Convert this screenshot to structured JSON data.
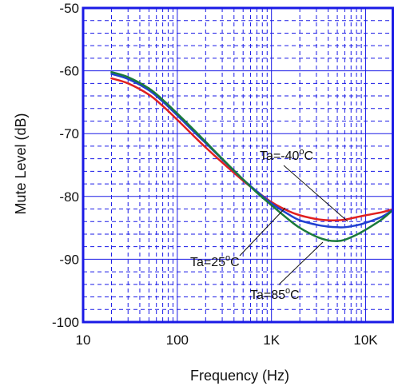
{
  "chart_data": {
    "type": "line",
    "title": "",
    "xlabel": "Frequency (Hz)",
    "ylabel": "Mute Level (dB)",
    "xscale": "log",
    "xlim": [
      10,
      20000
    ],
    "ylim": [
      -100,
      -50
    ],
    "x_ticks": [
      {
        "value": 10,
        "label": "10"
      },
      {
        "value": 100,
        "label": "100"
      },
      {
        "value": 1000,
        "label": "1K"
      },
      {
        "value": 10000,
        "label": "10K"
      }
    ],
    "y_ticks": [
      {
        "value": -50,
        "label": "-50"
      },
      {
        "value": -60,
        "label": "-60"
      },
      {
        "value": -70,
        "label": "-70"
      },
      {
        "value": -80,
        "label": "-80"
      },
      {
        "value": -90,
        "label": "-90"
      },
      {
        "value": -100,
        "label": "-100"
      }
    ],
    "grid": true,
    "legend": "none",
    "series": [
      {
        "name": "Ta=25°C",
        "color": "#e02020",
        "x": [
          20,
          30,
          50,
          70,
          100,
          150,
          200,
          300,
          500,
          700,
          1000,
          1500,
          2000,
          3000,
          4000,
          5000,
          6000,
          8000,
          10000,
          15000,
          20000
        ],
        "y": [
          -61.2,
          -62.0,
          -63.8,
          -65.6,
          -67.8,
          -70.4,
          -72.2,
          -74.6,
          -77.5,
          -79.2,
          -80.9,
          -82.3,
          -83.0,
          -83.6,
          -83.8,
          -83.8,
          -83.7,
          -83.3,
          -83.0,
          -82.5,
          -82.0
        ]
      },
      {
        "name": "Ta=-40°C",
        "color": "#2040d0",
        "x": [
          20,
          30,
          50,
          70,
          100,
          150,
          200,
          300,
          500,
          700,
          1000,
          1500,
          2000,
          3000,
          4000,
          5000,
          6000,
          8000,
          10000,
          15000,
          20000
        ],
        "y": [
          -60.5,
          -61.3,
          -63.1,
          -64.9,
          -67.1,
          -69.7,
          -71.5,
          -74.1,
          -77.3,
          -79.2,
          -81.1,
          -82.8,
          -83.8,
          -84.5,
          -84.8,
          -84.9,
          -84.9,
          -84.6,
          -84.2,
          -83.2,
          -82.0
        ]
      },
      {
        "name": "Ta=85°C",
        "color": "#1a7a3a",
        "x": [
          20,
          30,
          50,
          70,
          100,
          150,
          200,
          300,
          500,
          700,
          1000,
          1500,
          2000,
          3000,
          4000,
          5000,
          6000,
          8000,
          10000,
          15000,
          20000
        ],
        "y": [
          -60.2,
          -61.0,
          -62.8,
          -64.6,
          -66.8,
          -69.4,
          -71.3,
          -74.0,
          -77.3,
          -79.4,
          -81.4,
          -83.6,
          -85.0,
          -86.4,
          -87.0,
          -87.1,
          -86.9,
          -86.1,
          -85.3,
          -83.6,
          -82.0
        ]
      }
    ],
    "annotations": [
      {
        "text": "Ta=-40",
        "sup": "o",
        "suffix": "C",
        "series": "Ta=-40°C"
      },
      {
        "text": "Ta=25",
        "sup": "o",
        "suffix": "C",
        "series": "Ta=25°C"
      },
      {
        "text": "Ta=85",
        "sup": "o",
        "suffix": "C",
        "series": "Ta=85°C"
      }
    ]
  }
}
